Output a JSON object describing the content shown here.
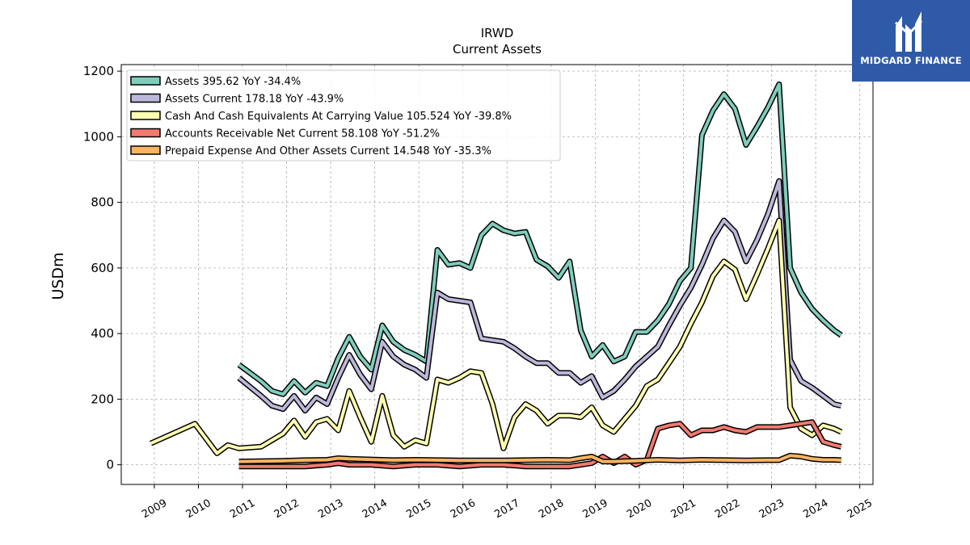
{
  "chart_data": {
    "type": "line",
    "title": "IRWD",
    "subtitle": "Current  Assets",
    "ylabel": "USDm",
    "xlabel": "",
    "ylim": [
      -60,
      1220
    ],
    "xlim": [
      2008.25,
      2025.3
    ],
    "yticks": [
      0,
      200,
      400,
      600,
      800,
      1000,
      1200
    ],
    "xticks": [
      "2009",
      "2010",
      "2011",
      "2012",
      "2013",
      "2014",
      "2015",
      "2016",
      "2017",
      "2018",
      "2019",
      "2020",
      "2021",
      "2022",
      "2023",
      "2024",
      "2025"
    ],
    "grid": true,
    "legend_position": "top-left",
    "series": [
      {
        "name": "Assets",
        "legend": "Assets  395.62 YoY -34.4%",
        "color": "#7fcdbb",
        "x": [
          2010.92,
          2011.42,
          2011.67,
          2011.92,
          2012.17,
          2012.42,
          2012.67,
          2012.92,
          2013.17,
          2013.42,
          2013.67,
          2013.92,
          2014.17,
          2014.42,
          2014.67,
          2014.92,
          2015.17,
          2015.42,
          2015.67,
          2015.92,
          2016.17,
          2016.42,
          2016.67,
          2016.92,
          2017.17,
          2017.42,
          2017.67,
          2017.92,
          2018.17,
          2018.42,
          2018.67,
          2018.92,
          2019.17,
          2019.42,
          2019.67,
          2019.92,
          2020.17,
          2020.42,
          2020.67,
          2020.92,
          2021.17,
          2021.42,
          2021.67,
          2021.92,
          2022.17,
          2022.42,
          2022.67,
          2022.92,
          2023.17,
          2023.42,
          2023.67,
          2023.92,
          2024.17,
          2024.42,
          2024.58
        ],
        "y": [
          305,
          255,
          225,
          215,
          255,
          220,
          250,
          240,
          325,
          390,
          330,
          290,
          425,
          375,
          350,
          335,
          315,
          655,
          610,
          615,
          600,
          700,
          735,
          715,
          705,
          710,
          625,
          605,
          570,
          620,
          410,
          330,
          365,
          315,
          330,
          405,
          405,
          440,
          490,
          560,
          600,
          1005,
          1080,
          1130,
          1085,
          975,
          1030,
          1090,
          1160,
          600,
          525,
          475,
          440,
          410,
          395
        ]
      },
      {
        "name": "Assets Current",
        "legend": "Assets Current  178.18 YoY -43.9%",
        "color": "#bcb8d9",
        "x": [
          2010.92,
          2011.42,
          2011.67,
          2011.92,
          2012.17,
          2012.42,
          2012.67,
          2012.92,
          2013.17,
          2013.42,
          2013.67,
          2013.92,
          2014.17,
          2014.42,
          2014.67,
          2014.92,
          2015.17,
          2015.42,
          2015.67,
          2015.92,
          2016.17,
          2016.42,
          2016.67,
          2016.92,
          2017.17,
          2017.42,
          2017.67,
          2017.92,
          2018.17,
          2018.42,
          2018.67,
          2018.92,
          2019.17,
          2019.42,
          2019.67,
          2019.92,
          2020.17,
          2020.42,
          2020.67,
          2020.92,
          2021.17,
          2021.42,
          2021.67,
          2021.92,
          2022.17,
          2022.42,
          2022.67,
          2022.92,
          2023.17,
          2023.42,
          2023.67,
          2023.92,
          2024.17,
          2024.42,
          2024.58
        ],
        "y": [
          265,
          210,
          180,
          170,
          210,
          165,
          205,
          185,
          265,
          335,
          275,
          230,
          375,
          330,
          305,
          290,
          265,
          525,
          505,
          500,
          495,
          385,
          380,
          375,
          355,
          330,
          310,
          310,
          280,
          280,
          250,
          270,
          205,
          225,
          260,
          300,
          330,
          360,
          425,
          485,
          540,
          610,
          690,
          745,
          710,
          620,
          685,
          765,
          865,
          320,
          255,
          235,
          210,
          185,
          180
        ]
      },
      {
        "name": "Cash And Cash Equivalents At Carrying Value",
        "legend": "Cash And Cash Equivalents At Carrying Value  105.524 YoY -39.8%",
        "color": "#ffffb3",
        "x": [
          2008.92,
          2009.92,
          2010.42,
          2010.67,
          2010.92,
          2011.42,
          2011.67,
          2011.92,
          2012.17,
          2012.42,
          2012.67,
          2012.92,
          2013.17,
          2013.42,
          2013.67,
          2013.92,
          2014.17,
          2014.42,
          2014.67,
          2014.92,
          2015.17,
          2015.42,
          2015.67,
          2015.92,
          2016.17,
          2016.42,
          2016.67,
          2016.92,
          2017.17,
          2017.42,
          2017.67,
          2017.92,
          2018.17,
          2018.42,
          2018.67,
          2018.92,
          2019.17,
          2019.42,
          2019.67,
          2019.92,
          2020.17,
          2020.42,
          2020.67,
          2020.92,
          2021.17,
          2021.42,
          2021.67,
          2021.92,
          2022.17,
          2022.42,
          2022.67,
          2022.92,
          2023.17,
          2023.42,
          2023.67,
          2023.92,
          2024.17,
          2024.42,
          2024.58
        ],
        "y": [
          65,
          125,
          35,
          60,
          50,
          55,
          75,
          95,
          135,
          85,
          130,
          140,
          105,
          225,
          145,
          70,
          210,
          90,
          55,
          75,
          65,
          260,
          250,
          265,
          285,
          280,
          185,
          50,
          145,
          185,
          165,
          125,
          150,
          150,
          145,
          175,
          120,
          100,
          140,
          180,
          240,
          260,
          310,
          360,
          430,
          495,
          575,
          620,
          595,
          505,
          580,
          660,
          745,
          175,
          110,
          90,
          120,
          110,
          100
        ]
      },
      {
        "name": "Accounts Receivable Net Current",
        "legend": "Accounts Receivable Net Current  58.108 YoY -51.2%",
        "color": "#f27a6f",
        "x": [
          2010.92,
          2011.92,
          2012.42,
          2012.92,
          2013.17,
          2013.42,
          2013.92,
          2014.42,
          2014.92,
          2015.42,
          2015.92,
          2016.42,
          2016.92,
          2017.42,
          2017.92,
          2018.42,
          2018.92,
          2019.17,
          2019.42,
          2019.67,
          2019.92,
          2020.17,
          2020.42,
          2020.67,
          2020.92,
          2021.17,
          2021.42,
          2021.67,
          2021.92,
          2022.17,
          2022.42,
          2022.67,
          2022.92,
          2023.17,
          2023.42,
          2023.67,
          2023.92,
          2024.17,
          2024.42,
          2024.58
        ],
        "y": [
          -5,
          -5,
          -5,
          0,
          5,
          0,
          0,
          -5,
          0,
          0,
          -5,
          0,
          0,
          -5,
          -5,
          -5,
          5,
          25,
          5,
          25,
          0,
          15,
          110,
          120,
          125,
          90,
          105,
          105,
          115,
          105,
          100,
          115,
          115,
          115,
          120,
          125,
          130,
          70,
          60,
          55
        ]
      },
      {
        "name": "Prepaid Expense And Other Assets Current",
        "legend": "Prepaid Expense And Other Assets Current  14.548 YoY -35.3%",
        "color": "#fdb462",
        "x": [
          2010.92,
          2011.92,
          2012.42,
          2012.92,
          2013.17,
          2013.42,
          2013.92,
          2014.42,
          2014.92,
          2015.42,
          2015.92,
          2016.42,
          2016.92,
          2017.42,
          2017.92,
          2018.42,
          2018.67,
          2018.92,
          2019.17,
          2019.42,
          2019.92,
          2020.42,
          2020.92,
          2021.42,
          2021.92,
          2022.42,
          2022.92,
          2023.17,
          2023.42,
          2023.67,
          2023.92,
          2024.17,
          2024.42,
          2024.58
        ],
        "y": [
          10,
          12,
          14,
          15,
          20,
          18,
          16,
          14,
          15,
          14,
          13,
          13,
          13,
          14,
          15,
          14,
          20,
          25,
          10,
          10,
          12,
          15,
          13,
          15,
          14,
          13,
          14,
          14,
          28,
          25,
          18,
          15,
          15,
          14
        ]
      }
    ]
  },
  "logo": {
    "text": "MIDGARD FINANCE"
  }
}
